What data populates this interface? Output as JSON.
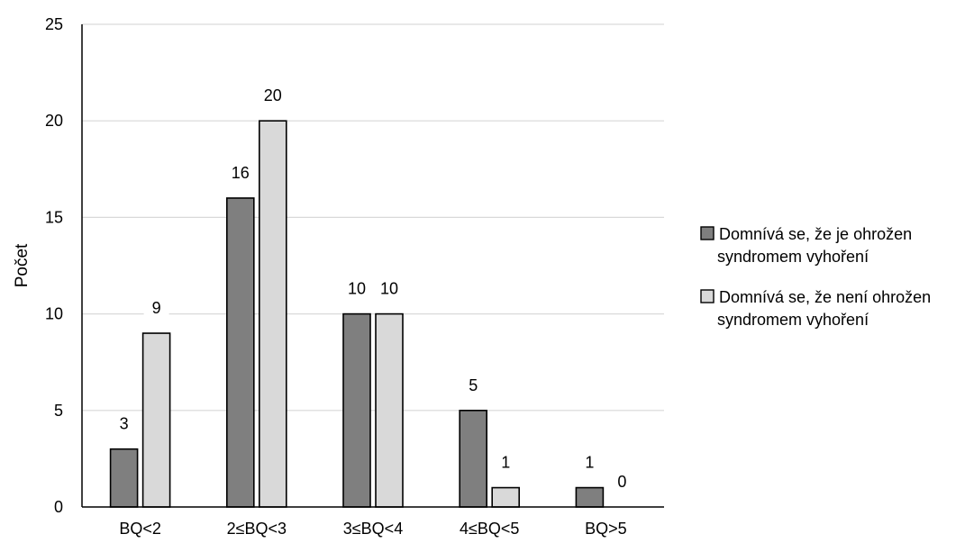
{
  "chart_data": {
    "type": "bar",
    "categories": [
      "BQ<2",
      "2≤BQ<3",
      "3≤BQ<4",
      "4≤BQ<5",
      "BQ>5"
    ],
    "series": [
      {
        "name": "Domnívá se, že je ohrožen syndromem vyhoření",
        "legend_lines": [
          "Domnívá se, že je ohrožen",
          "syndromem vyhoření"
        ],
        "color": "#7f7f7f",
        "values": [
          3,
          16,
          10,
          5,
          1
        ]
      },
      {
        "name": "Domnívá se, že není ohrožen syndromem vyhoření",
        "legend_lines": [
          "Domnívá se, že není ohrožen",
          "syndromem vyhoření"
        ],
        "color": "#d9d9d9",
        "values": [
          9,
          20,
          10,
          1,
          0
        ]
      }
    ],
    "ylabel": "Počet",
    "xlabel": "",
    "ylim": [
      0,
      25
    ],
    "yticks": [
      0,
      5,
      10,
      15,
      20,
      25
    ],
    "grid": true,
    "legend": "right",
    "gridline_color": "#d9d9d9",
    "bar_outline_color": "#000000"
  }
}
